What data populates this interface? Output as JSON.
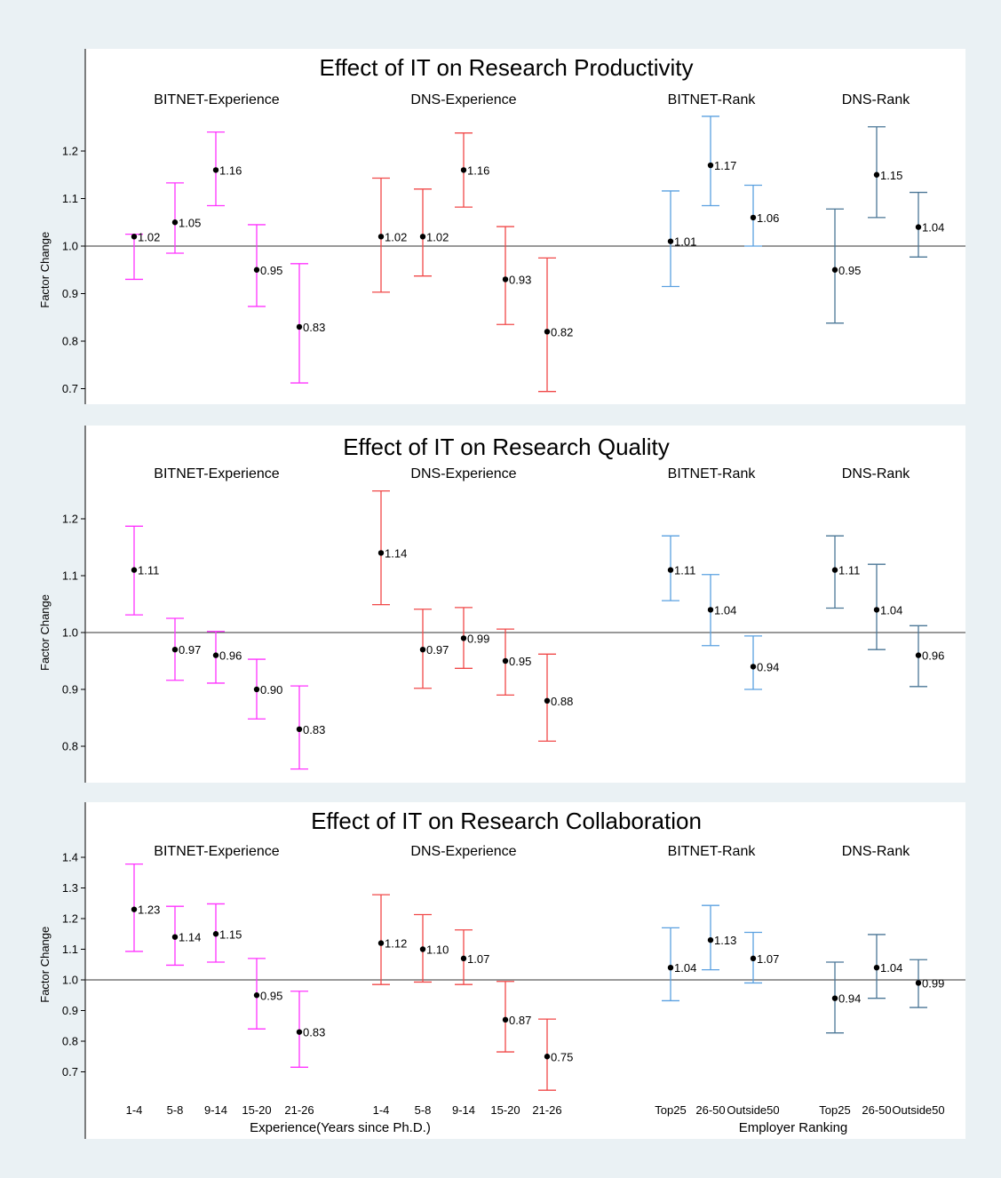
{
  "chart_data": [
    {
      "type": "errorbar",
      "title": "Effect of IT on Research Productivity",
      "ylabel": "Factor Change",
      "ylim": [
        0.68,
        1.26
      ],
      "yticks": [
        0.7,
        0.8,
        0.9,
        1.0,
        1.1,
        1.2
      ],
      "reference_line": 1.0,
      "groups": [
        {
          "name": "BITNET-Experience",
          "color": "#ff33ff",
          "categories": [
            "1-4",
            "5-8",
            "9-14",
            "15-20",
            "21-26"
          ],
          "values": [
            1.02,
            1.05,
            1.16,
            0.95,
            0.83
          ],
          "lower": [
            0.93,
            0.985,
            1.085,
            0.873,
            0.712
          ],
          "upper": [
            1.025,
            1.133,
            1.24,
            1.045,
            0.963
          ]
        },
        {
          "name": "DNS-Experience",
          "color": "#f04848",
          "categories": [
            "1-4",
            "5-8",
            "9-14",
            "15-20",
            "21-26"
          ],
          "values": [
            1.02,
            1.02,
            1.16,
            0.93,
            0.82
          ],
          "lower": [
            0.903,
            0.937,
            1.082,
            0.835,
            0.694
          ],
          "upper": [
            1.143,
            1.12,
            1.238,
            1.041,
            0.975
          ]
        },
        {
          "name": "BITNET-Rank",
          "color": "#5aa0e0",
          "categories": [
            "Top25",
            "26-50",
            "Outside50"
          ],
          "values": [
            1.01,
            1.17,
            1.06
          ],
          "lower": [
            0.915,
            1.085,
            1.0
          ],
          "upper": [
            1.116,
            1.273,
            1.128
          ]
        },
        {
          "name": "DNS-Rank",
          "color": "#4a7696",
          "categories": [
            "Top25",
            "26-50",
            "Outside50"
          ],
          "values": [
            0.95,
            1.15,
            1.04
          ],
          "lower": [
            0.838,
            1.06,
            0.977
          ],
          "upper": [
            1.078,
            1.251,
            1.113
          ]
        }
      ]
    },
    {
      "type": "errorbar",
      "title": "Effect of IT on Research Quality",
      "ylabel": "Factor Change",
      "ylim": [
        0.75,
        1.25
      ],
      "yticks": [
        0.8,
        0.9,
        1.0,
        1.1,
        1.2
      ],
      "reference_line": 1.0,
      "groups": [
        {
          "name": "BITNET-Experience",
          "color": "#ff33ff",
          "categories": [
            "1-4",
            "5-8",
            "9-14",
            "15-20",
            "21-26"
          ],
          "values": [
            1.11,
            0.97,
            0.96,
            0.9,
            0.83
          ],
          "lower": [
            1.031,
            0.916,
            0.911,
            0.848,
            0.76
          ],
          "upper": [
            1.187,
            1.025,
            1.002,
            0.953,
            0.906
          ]
        },
        {
          "name": "DNS-Experience",
          "color": "#f04848",
          "categories": [
            "1-4",
            "5-8",
            "9-14",
            "15-20",
            "21-26"
          ],
          "values": [
            1.14,
            0.97,
            0.99,
            0.95,
            0.88
          ],
          "lower": [
            1.049,
            0.902,
            0.937,
            0.89,
            0.809
          ],
          "upper": [
            1.249,
            1.041,
            1.044,
            1.006,
            0.962
          ]
        },
        {
          "name": "BITNET-Rank",
          "color": "#5aa0e0",
          "categories": [
            "Top25",
            "26-50",
            "Outside50"
          ],
          "values": [
            1.11,
            1.04,
            0.94
          ],
          "lower": [
            1.056,
            0.977,
            0.9
          ],
          "upper": [
            1.17,
            1.102,
            0.994
          ]
        },
        {
          "name": "DNS-Rank",
          "color": "#4a7696",
          "categories": [
            "Top25",
            "26-50",
            "Outside50"
          ],
          "values": [
            1.11,
            1.04,
            0.96
          ],
          "lower": [
            1.043,
            0.97,
            0.905
          ],
          "upper": [
            1.17,
            1.12,
            1.012
          ]
        }
      ]
    },
    {
      "type": "errorbar",
      "title": "Effect of IT on Research Collaboration",
      "ylabel": "Factor Change",
      "ylim": [
        0.66,
        1.44
      ],
      "yticks": [
        0.7,
        0.8,
        0.9,
        1.0,
        1.1,
        1.2,
        1.3,
        1.4
      ],
      "reference_line": 1.0,
      "x_titles": [
        "Experience(Years since Ph.D.)",
        "Employer Ranking"
      ],
      "groups": [
        {
          "name": "BITNET-Experience",
          "color": "#ff33ff",
          "categories": [
            "1-4",
            "5-8",
            "9-14",
            "15-20",
            "21-26"
          ],
          "values": [
            1.23,
            1.14,
            1.15,
            0.95,
            0.83
          ],
          "lower": [
            1.093,
            1.048,
            1.058,
            0.84,
            0.715
          ],
          "upper": [
            1.378,
            1.24,
            1.248,
            1.07,
            0.963
          ]
        },
        {
          "name": "DNS-Experience",
          "color": "#f04848",
          "categories": [
            "1-4",
            "5-8",
            "9-14",
            "15-20",
            "21-26"
          ],
          "values": [
            1.12,
            1.1,
            1.07,
            0.87,
            0.75
          ],
          "lower": [
            0.985,
            0.993,
            0.985,
            0.765,
            0.64
          ],
          "upper": [
            1.278,
            1.213,
            1.163,
            0.995,
            0.872
          ]
        },
        {
          "name": "BITNET-Rank",
          "color": "#5aa0e0",
          "categories": [
            "Top25",
            "26-50",
            "Outside50"
          ],
          "values": [
            1.04,
            1.13,
            1.07
          ],
          "lower": [
            0.932,
            1.033,
            0.99
          ],
          "upper": [
            1.17,
            1.243,
            1.155
          ]
        },
        {
          "name": "DNS-Rank",
          "color": "#4a7696",
          "categories": [
            "Top25",
            "26-50",
            "Outside50"
          ],
          "values": [
            0.94,
            1.04,
            0.99
          ],
          "lower": [
            0.827,
            0.94,
            0.91
          ],
          "upper": [
            1.058,
            1.148,
            1.066
          ]
        }
      ]
    }
  ]
}
